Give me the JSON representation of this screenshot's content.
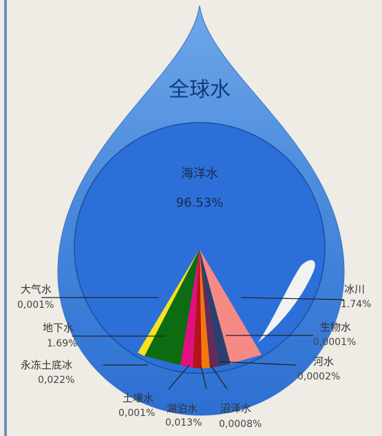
{
  "title": "全球水",
  "ocean": {
    "name": "海洋水",
    "value": "96.53%"
  },
  "items": [
    {
      "name": "大气水",
      "value": "0,001%"
    },
    {
      "name": "地下水",
      "value": "1.69%"
    },
    {
      "name": "永冻土底冰",
      "value": "0,022%"
    },
    {
      "name": "土壤水",
      "value": "0,001%"
    },
    {
      "name": "湖泊水",
      "value": "0,013%"
    },
    {
      "name": "沼泽水",
      "value": "0,0008%"
    },
    {
      "name": "河水",
      "value": "0,0002%"
    },
    {
      "name": "生物水",
      "value": "0,0001%"
    },
    {
      "name": "冰川",
      "value": "1.74%"
    }
  ]
}
